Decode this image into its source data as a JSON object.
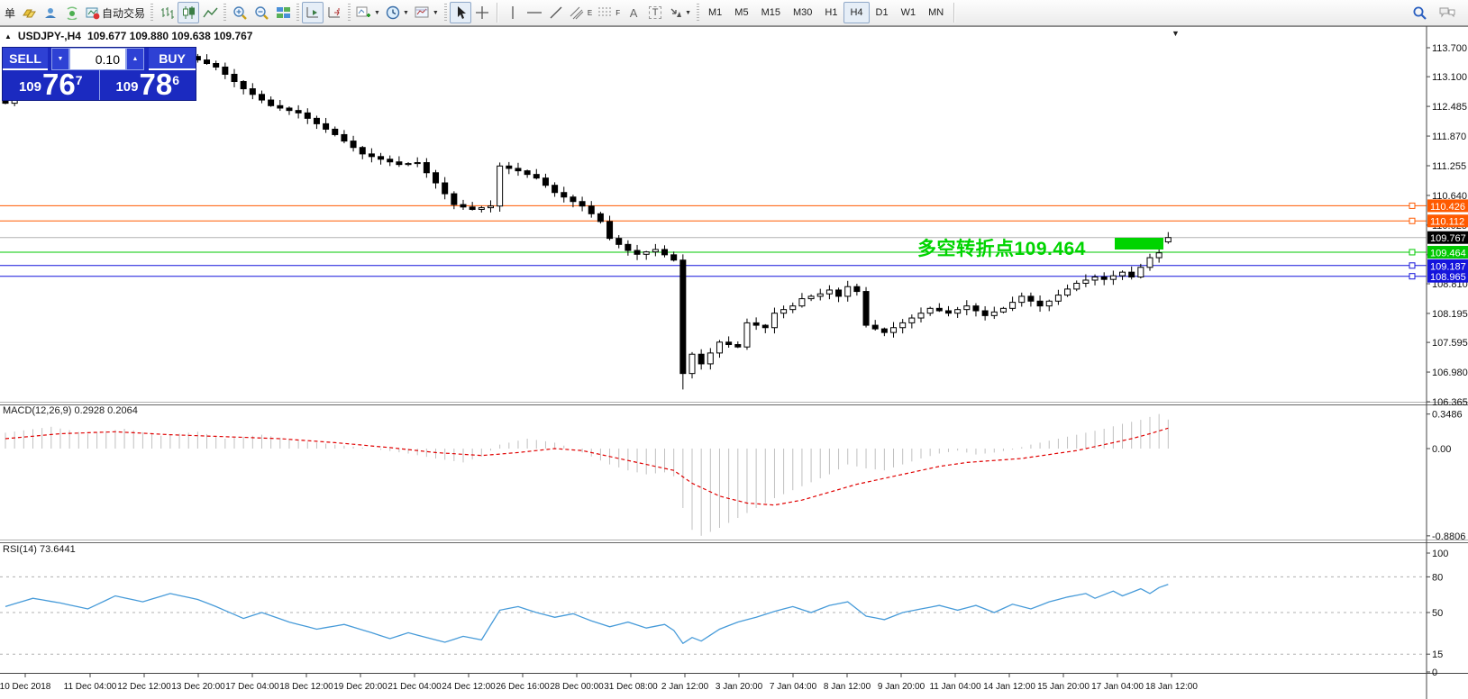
{
  "toolbar": {
    "new_order_label": "单",
    "autotrading_label": "自动交易",
    "timeframes": [
      "M1",
      "M5",
      "M15",
      "M30",
      "H1",
      "H4",
      "D1",
      "W1",
      "MN"
    ],
    "active_timeframe": "H4",
    "icons": [
      "new-order-icon",
      "gold-icon",
      "community-icon",
      "signal-icon",
      "autotrading-icon",
      "bar-chart-icon",
      "candle-chart-icon",
      "line-chart-icon",
      "zoom-in-icon",
      "zoom-out-icon",
      "tile-windows-icon",
      "auto-scroll-icon",
      "chart-shift-icon",
      "indicators-icon",
      "periods-icon",
      "templates-icon",
      "cursor-icon",
      "crosshair-icon",
      "vertical-line-icon",
      "horizontal-line-icon",
      "trendline-icon",
      "channel-icon",
      "fibonacci-icon",
      "text-icon",
      "text-label-icon",
      "arrows-icon",
      "search-icon",
      "chat-icon"
    ],
    "channel_letter": "E",
    "fibo_letter": "F",
    "text_letter": "A",
    "label_letter": "T"
  },
  "chart": {
    "title_symbol": "USDJPY-,H4",
    "title_ohlc": "109.677 109.880 109.638 109.767",
    "collapse_icon": "▲",
    "dropdown_icon": "▼",
    "one_click": {
      "sell_label": "SELL",
      "buy_label": "BUY",
      "volume": "0.10",
      "down_arrow": "▼",
      "up_arrow": "▲",
      "sell_small": "109",
      "sell_big": "76",
      "sell_sup": "7",
      "buy_small": "109",
      "buy_big": "78",
      "buy_sup": "6"
    },
    "annotation": {
      "text": "多空转折点109.464",
      "color": "#00d400"
    }
  },
  "panes": {
    "macd": {
      "label": "MACD(12,26,9) 0.2928 0.2064",
      "ticks": [
        {
          "v": 0.3486,
          "t": "0.3486"
        },
        {
          "v": 0.0,
          "t": "0.00"
        },
        {
          "v": -0.8806,
          "t": "-0.8806"
        }
      ]
    },
    "rsi": {
      "label": "RSI(14) 73.6441",
      "ticks": [
        {
          "v": 100,
          "t": "100"
        },
        {
          "v": 80,
          "t": "80"
        },
        {
          "v": 50,
          "t": "50"
        },
        {
          "v": 15,
          "t": "15"
        },
        {
          "v": 0,
          "t": "0"
        }
      ],
      "levels": [
        80,
        50,
        15
      ]
    }
  },
  "price_axis": {
    "ticks": [
      {
        "v": 113.7,
        "t": "113.700"
      },
      {
        "v": 113.1,
        "t": "113.100"
      },
      {
        "v": 112.485,
        "t": "112.485"
      },
      {
        "v": 111.87,
        "t": "111.870"
      },
      {
        "v": 111.255,
        "t": "111.255"
      },
      {
        "v": 110.64,
        "t": "110.640"
      },
      {
        "v": 110.025,
        "t": "110.025"
      },
      {
        "v": 109.41,
        "t": "109.410"
      },
      {
        "v": 108.81,
        "t": "108.810"
      },
      {
        "v": 108.195,
        "t": "108.195"
      },
      {
        "v": 107.595,
        "t": "107.595"
      },
      {
        "v": 106.98,
        "t": "106.980"
      },
      {
        "v": 106.365,
        "t": "106.365"
      }
    ]
  },
  "time_axis": [
    "10 Dec 2018",
    "11 Dec 04:00",
    "12 Dec 12:00",
    "13 Dec 20:00",
    "17 Dec 04:00",
    "18 Dec 12:00",
    "19 Dec 20:00",
    "21 Dec 04:00",
    "24 Dec 12:00",
    "26 Dec 16:00",
    "28 Dec 00:00",
    "31 Dec 08:00",
    "2 Jan 12:00",
    "3 Jan 20:00",
    "7 Jan 04:00",
    "8 Jan 12:00",
    "9 Jan 20:00",
    "11 Jan 04:00",
    "14 Jan 12:00",
    "15 Jan 20:00",
    "17 Jan 04:00",
    "18 Jan 12:00"
  ],
  "chart_data": {
    "type": "candlestick",
    "symbol": "USDJPY",
    "timeframe": "H4",
    "bars": 128,
    "ylim": [
      106.365,
      113.7
    ],
    "close_keypoints": [
      [
        0,
        112.55
      ],
      [
        2,
        112.9
      ],
      [
        5,
        113.15
      ],
      [
        8,
        113.4
      ],
      [
        12,
        113.5
      ],
      [
        16,
        113.42
      ],
      [
        20,
        113.52
      ],
      [
        23,
        113.3
      ],
      [
        26,
        112.85
      ],
      [
        29,
        112.5
      ],
      [
        32,
        112.35
      ],
      [
        36,
        111.9
      ],
      [
        39,
        111.5
      ],
      [
        43,
        111.28
      ],
      [
        45,
        111.32
      ],
      [
        47,
        110.9
      ],
      [
        49,
        110.45
      ],
      [
        51,
        110.35
      ],
      [
        53,
        110.42
      ],
      [
        54,
        111.25
      ],
      [
        56,
        111.15
      ],
      [
        58,
        111.0
      ],
      [
        60,
        110.7
      ],
      [
        63,
        110.42
      ],
      [
        65,
        110.1
      ],
      [
        66,
        109.75
      ],
      [
        68,
        109.5
      ],
      [
        69,
        109.42
      ],
      [
        71,
        109.52
      ],
      [
        73,
        109.3
      ],
      [
        74,
        106.95
      ],
      [
        75,
        107.35
      ],
      [
        76,
        107.15
      ],
      [
        78,
        107.6
      ],
      [
        80,
        107.5
      ],
      [
        81,
        108.0
      ],
      [
        83,
        107.9
      ],
      [
        84,
        108.2
      ],
      [
        86,
        108.35
      ],
      [
        87,
        108.5
      ],
      [
        89,
        108.6
      ],
      [
        90,
        108.68
      ],
      [
        91,
        108.55
      ],
      [
        92,
        108.75
      ],
      [
        93,
        108.65
      ],
      [
        94,
        107.95
      ],
      [
        96,
        107.8
      ],
      [
        97,
        107.9
      ],
      [
        99,
        108.1
      ],
      [
        101,
        108.3
      ],
      [
        103,
        108.2
      ],
      [
        105,
        108.35
      ],
      [
        107,
        108.15
      ],
      [
        109,
        108.3
      ],
      [
        111,
        108.55
      ],
      [
        113,
        108.35
      ],
      [
        114,
        108.45
      ],
      [
        116,
        108.7
      ],
      [
        117,
        108.82
      ],
      [
        119,
        108.95
      ],
      [
        120,
        108.9
      ],
      [
        122,
        109.05
      ],
      [
        123,
        108.95
      ],
      [
        125,
        109.35
      ],
      [
        126,
        109.45
      ],
      [
        127,
        109.767
      ]
    ],
    "crash_bar": {
      "index": 74,
      "low": 106.62
    },
    "last_bar": {
      "open": 109.677,
      "high": 109.88,
      "low": 109.638,
      "close": 109.767
    },
    "levels": [
      {
        "price": 110.426,
        "label": "110.426",
        "color": "#ff5a00",
        "marker": true
      },
      {
        "price": 110.112,
        "label": "110.112",
        "color": "#ff5a00",
        "marker": true
      },
      {
        "price": 109.767,
        "label": "109.767",
        "color": "#b4b4b4",
        "label_bg": "#000000",
        "is_current": true
      },
      {
        "price": 109.464,
        "label": "109.464",
        "color": "#00c800",
        "marker": true
      },
      {
        "price": 109.187,
        "label": "109.187",
        "color": "#1414dc",
        "marker": true
      },
      {
        "price": 108.965,
        "label": "108.965",
        "color": "#1414dc",
        "marker": true
      }
    ],
    "indicators": [
      {
        "type": "MACD",
        "params": [
          12,
          26,
          9
        ],
        "current": [
          0.2928,
          0.2064
        ],
        "range": [
          -0.8806,
          0.3486
        ],
        "histogram_keypoints": [
          [
            0,
            0.16
          ],
          [
            5,
            0.22
          ],
          [
            9,
            0.15
          ],
          [
            13,
            0.2
          ],
          [
            17,
            0.13
          ],
          [
            21,
            0.17
          ],
          [
            24,
            0.1
          ],
          [
            28,
            0.14
          ],
          [
            32,
            0.08
          ],
          [
            36,
            0.04
          ],
          [
            40,
            0.0
          ],
          [
            44,
            -0.05
          ],
          [
            47,
            -0.1
          ],
          [
            50,
            -0.14
          ],
          [
            52,
            -0.08
          ],
          [
            54,
            0.04
          ],
          [
            57,
            0.1
          ],
          [
            60,
            0.06
          ],
          [
            62,
            0.0
          ],
          [
            64,
            -0.08
          ],
          [
            66,
            -0.16
          ],
          [
            68,
            -0.22
          ],
          [
            70,
            -0.26
          ],
          [
            72,
            -0.24
          ],
          [
            73,
            -0.28
          ],
          [
            74,
            -0.6
          ],
          [
            75,
            -0.82
          ],
          [
            76,
            -0.88
          ],
          [
            78,
            -0.8
          ],
          [
            80,
            -0.7
          ],
          [
            82,
            -0.6
          ],
          [
            84,
            -0.5
          ],
          [
            87,
            -0.38
          ],
          [
            90,
            -0.26
          ],
          [
            92,
            -0.16
          ],
          [
            94,
            -0.2
          ],
          [
            96,
            -0.22
          ],
          [
            98,
            -0.16
          ],
          [
            100,
            -0.1
          ],
          [
            102,
            -0.05
          ],
          [
            104,
            -0.02
          ],
          [
            106,
            -0.06
          ],
          [
            108,
            -0.04
          ],
          [
            110,
            -0.01
          ],
          [
            112,
            0.04
          ],
          [
            114,
            0.08
          ],
          [
            116,
            0.12
          ],
          [
            118,
            0.16
          ],
          [
            120,
            0.2
          ],
          [
            122,
            0.25
          ],
          [
            124,
            0.29
          ],
          [
            126,
            0.3486
          ],
          [
            127,
            0.2928
          ]
        ],
        "signal_keypoints": [
          [
            0,
            0.1
          ],
          [
            6,
            0.15
          ],
          [
            12,
            0.17
          ],
          [
            18,
            0.14
          ],
          [
            24,
            0.12
          ],
          [
            30,
            0.1
          ],
          [
            36,
            0.06
          ],
          [
            42,
            0.01
          ],
          [
            47,
            -0.04
          ],
          [
            52,
            -0.07
          ],
          [
            56,
            -0.04
          ],
          [
            60,
            0.0
          ],
          [
            63,
            -0.02
          ],
          [
            66,
            -0.08
          ],
          [
            70,
            -0.16
          ],
          [
            73,
            -0.22
          ],
          [
            75,
            -0.35
          ],
          [
            78,
            -0.48
          ],
          [
            81,
            -0.55
          ],
          [
            84,
            -0.57
          ],
          [
            87,
            -0.52
          ],
          [
            90,
            -0.44
          ],
          [
            93,
            -0.36
          ],
          [
            96,
            -0.3
          ],
          [
            99,
            -0.24
          ],
          [
            102,
            -0.18
          ],
          [
            105,
            -0.14
          ],
          [
            108,
            -0.12
          ],
          [
            111,
            -0.1
          ],
          [
            114,
            -0.06
          ],
          [
            117,
            -0.02
          ],
          [
            120,
            0.04
          ],
          [
            123,
            0.1
          ],
          [
            125,
            0.15
          ],
          [
            127,
            0.2064
          ]
        ]
      },
      {
        "type": "RSI",
        "params": [
          14
        ],
        "current": 73.6441,
        "range": [
          0,
          100
        ],
        "keypoints": [
          [
            0,
            55
          ],
          [
            3,
            62
          ],
          [
            6,
            58
          ],
          [
            9,
            53
          ],
          [
            12,
            64
          ],
          [
            15,
            59
          ],
          [
            18,
            66
          ],
          [
            21,
            61
          ],
          [
            23,
            55
          ],
          [
            26,
            45
          ],
          [
            28,
            50
          ],
          [
            31,
            42
          ],
          [
            34,
            36
          ],
          [
            37,
            40
          ],
          [
            40,
            33
          ],
          [
            42,
            28
          ],
          [
            44,
            33
          ],
          [
            46,
            29
          ],
          [
            48,
            25
          ],
          [
            50,
            30
          ],
          [
            52,
            27
          ],
          [
            54,
            52
          ],
          [
            56,
            55
          ],
          [
            58,
            50
          ],
          [
            60,
            46
          ],
          [
            62,
            49
          ],
          [
            64,
            43
          ],
          [
            66,
            38
          ],
          [
            68,
            42
          ],
          [
            70,
            37
          ],
          [
            72,
            40
          ],
          [
            73,
            35
          ],
          [
            74,
            24
          ],
          [
            75,
            29
          ],
          [
            76,
            26
          ],
          [
            78,
            36
          ],
          [
            80,
            42
          ],
          [
            82,
            46
          ],
          [
            84,
            51
          ],
          [
            86,
            55
          ],
          [
            88,
            50
          ],
          [
            90,
            56
          ],
          [
            92,
            59
          ],
          [
            94,
            47
          ],
          [
            96,
            44
          ],
          [
            98,
            50
          ],
          [
            100,
            53
          ],
          [
            102,
            56
          ],
          [
            104,
            52
          ],
          [
            106,
            56
          ],
          [
            108,
            50
          ],
          [
            110,
            57
          ],
          [
            112,
            53
          ],
          [
            114,
            59
          ],
          [
            116,
            63
          ],
          [
            118,
            66
          ],
          [
            119,
            62
          ],
          [
            121,
            68
          ],
          [
            122,
            64
          ],
          [
            124,
            70
          ],
          [
            125,
            66
          ],
          [
            126,
            71
          ],
          [
            127,
            73.64
          ]
        ]
      }
    ],
    "colors": {
      "bull": "#ffffff",
      "bear": "#000000",
      "outline": "#000000",
      "macd_hist": "#c0c0c0",
      "macd_signal": "#e00000",
      "rsi_line": "#479bd9",
      "grid_dash": "#b0b0b0",
      "axis_text": "#111111"
    }
  }
}
